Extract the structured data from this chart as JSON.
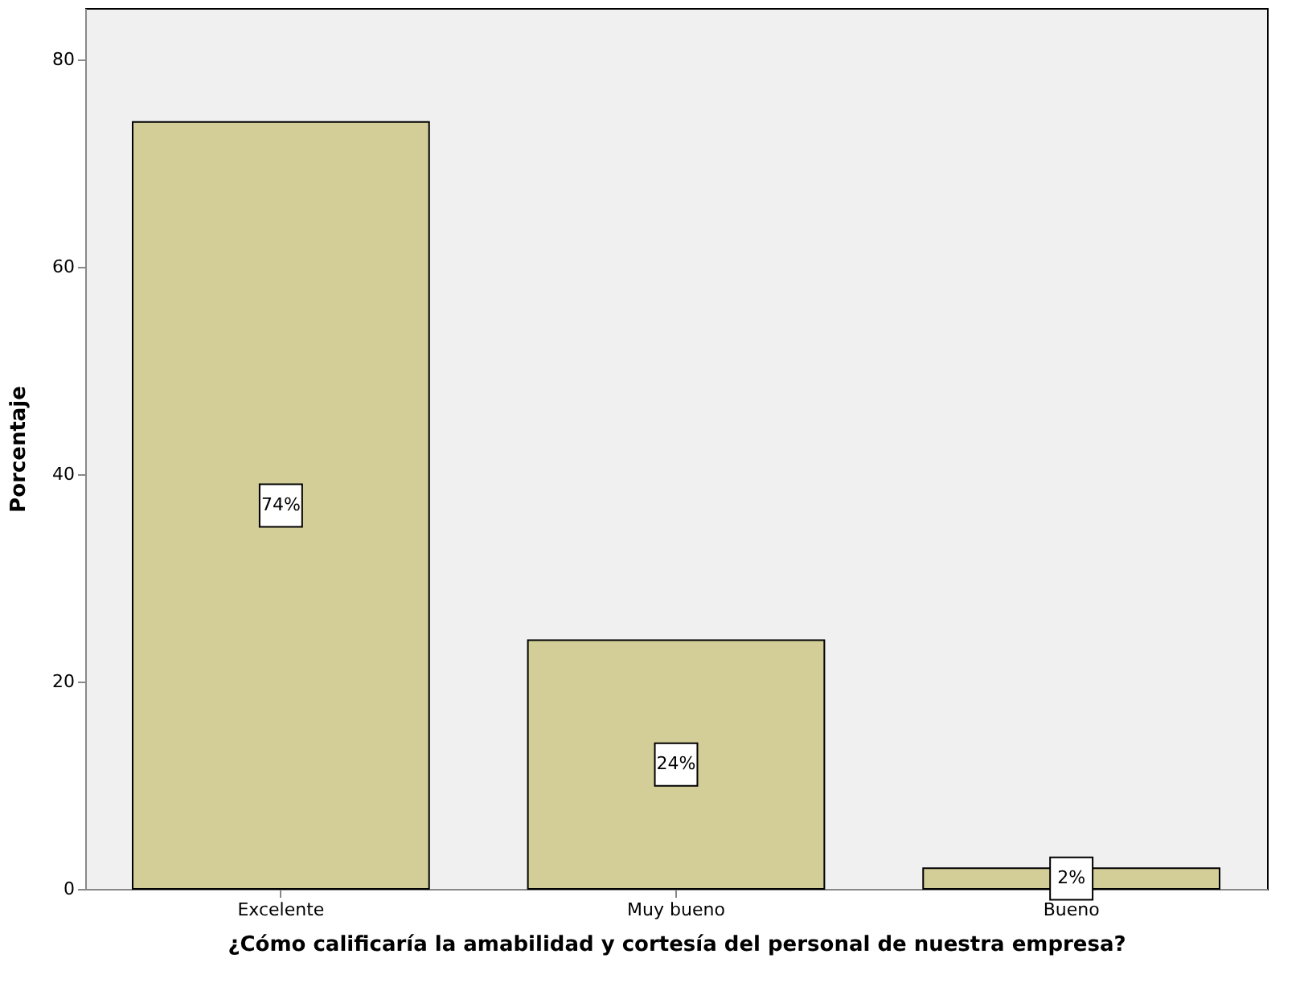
{
  "chart_data": {
    "type": "bar",
    "xlabel": "¿Cómo calificaría la amabilidad y cortesía del personal de nuestra empresa?",
    "ylabel": "Porcentaje",
    "categories": [
      "Excelente",
      "Muy bueno",
      "Bueno"
    ],
    "values": [
      74,
      24,
      2
    ],
    "value_labels": [
      "74%",
      "24%",
      "2%"
    ],
    "color": "#d3cd98",
    "ylim": [
      0,
      85
    ],
    "yticks": [
      0,
      20,
      40,
      60,
      80
    ],
    "grid": false
  }
}
